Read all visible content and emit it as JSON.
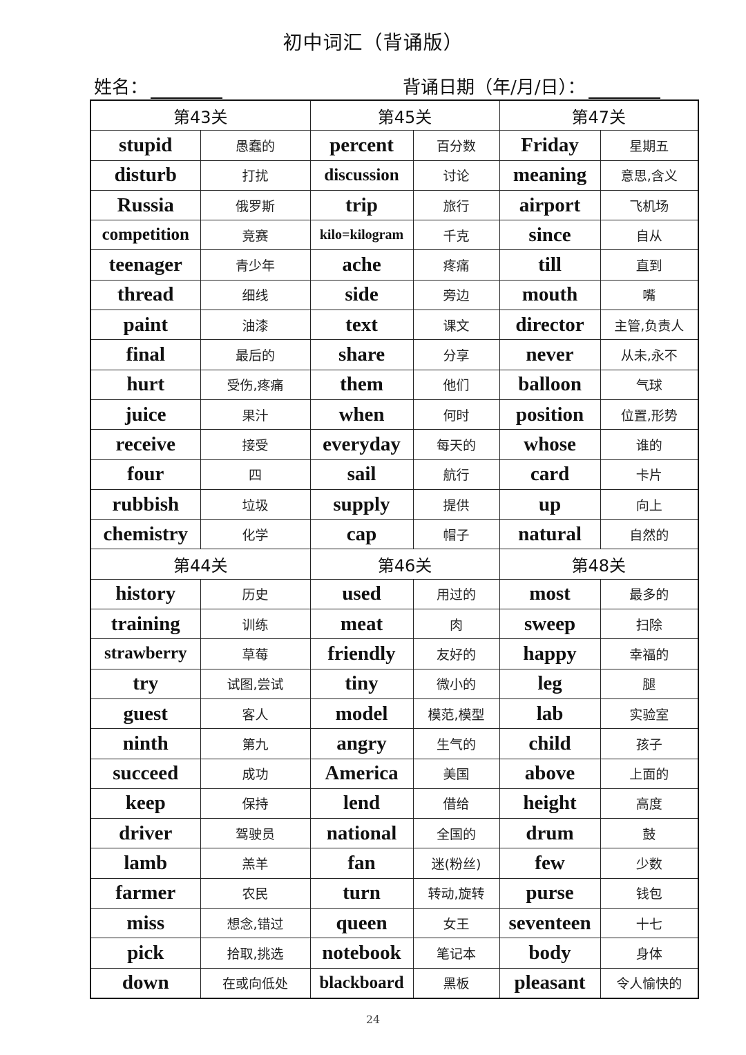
{
  "title": "初中词汇（背诵版）",
  "name_label": "姓名：",
  "date_label": "背诵日期（年/月/日）：",
  "page_number": "24",
  "sections": [
    {
      "headers": [
        "第43关",
        "第45关",
        "第47关"
      ],
      "rows": [
        [
          "stupid",
          "愚蠢的",
          "percent",
          "百分数",
          "Friday",
          "星期五"
        ],
        [
          "disturb",
          "打扰",
          "discussion",
          "讨论",
          "meaning",
          "意思,含义"
        ],
        [
          "Russia",
          "俄罗斯",
          "trip",
          "旅行",
          "airport",
          "飞机场"
        ],
        [
          "competition",
          "竞赛",
          "kilo=kilogram",
          "千克",
          "since",
          "自从"
        ],
        [
          "teenager",
          "青少年",
          "ache",
          "疼痛",
          "till",
          "直到"
        ],
        [
          "thread",
          "细线",
          "side",
          "旁边",
          "mouth",
          "嘴"
        ],
        [
          "paint",
          "油漆",
          "text",
          "课文",
          "director",
          "主管,负责人"
        ],
        [
          "final",
          "最后的",
          "share",
          "分享",
          "never",
          "从未,永不"
        ],
        [
          "hurt",
          "受伤,疼痛",
          "them",
          "他们",
          "balloon",
          "气球"
        ],
        [
          "juice",
          "果汁",
          "when",
          "何时",
          "position",
          "位置,形势"
        ],
        [
          "receive",
          "接受",
          "everyday",
          "每天的",
          "whose",
          "谁的"
        ],
        [
          "four",
          "四",
          "sail",
          "航行",
          "card",
          "卡片"
        ],
        [
          "rubbish",
          "垃圾",
          "supply",
          "提供",
          "up",
          "向上"
        ],
        [
          "chemistry",
          "化学",
          "cap",
          "帽子",
          "natural",
          "自然的"
        ]
      ]
    },
    {
      "headers": [
        "第44关",
        "第46关",
        "第48关"
      ],
      "rows": [
        [
          "history",
          "历史",
          "used",
          "用过的",
          "most",
          "最多的"
        ],
        [
          "training",
          "训练",
          "meat",
          "肉",
          "sweep",
          "扫除"
        ],
        [
          "strawberry",
          "草莓",
          "friendly",
          "友好的",
          "happy",
          "幸福的"
        ],
        [
          "try",
          "试图,尝试",
          "tiny",
          "微小的",
          "leg",
          "腿"
        ],
        [
          "guest",
          "客人",
          "model",
          "模范,模型",
          "lab",
          "实验室"
        ],
        [
          "ninth",
          "第九",
          "angry",
          "生气的",
          "child",
          "孩子"
        ],
        [
          "succeed",
          "成功",
          "America",
          "美国",
          "above",
          "上面的"
        ],
        [
          "keep",
          "保持",
          "lend",
          "借给",
          "height",
          "高度"
        ],
        [
          "driver",
          "驾驶员",
          "national",
          "全国的",
          "drum",
          "鼓"
        ],
        [
          "lamb",
          "羔羊",
          "fan",
          "迷(粉丝)",
          "few",
          "少数"
        ],
        [
          "farmer",
          "农民",
          "turn",
          "转动,旋转",
          "purse",
          "钱包"
        ],
        [
          "miss",
          "想念,错过",
          "queen",
          "女王",
          "seventeen",
          "十七"
        ],
        [
          "pick",
          "拾取,挑选",
          "notebook",
          "笔记本",
          "body",
          "身体"
        ],
        [
          "down",
          "在或向低处",
          "blackboard",
          "黑板",
          "pleasant",
          "令人愉快的"
        ]
      ]
    }
  ]
}
